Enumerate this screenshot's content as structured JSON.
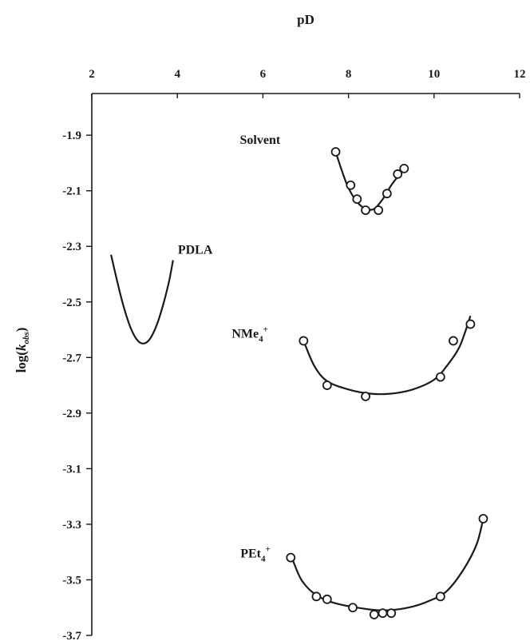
{
  "chart_data": {
    "type": "scatter",
    "title": "",
    "xlabel": "pD",
    "ylabel_main": "log(",
    "ylabel_k": "k",
    "ylabel_sub": "obs",
    "ylabel_close": ")",
    "x_axis_position": "top",
    "xlim": [
      2,
      12
    ],
    "ylim": [
      -3.7,
      -1.75
    ],
    "x_ticks": [
      "2",
      "4",
      "6",
      "8",
      "10",
      "12"
    ],
    "y_ticks": [
      "-1.9",
      "-2.1",
      "-2.3",
      "-2.5",
      "-2.7",
      "-2.9",
      "-3.1",
      "-3.3",
      "-3.5",
      "-3.7"
    ],
    "grid": false,
    "series": [
      {
        "name": "Solvent",
        "label_parts": {
          "base": "Solvent",
          "sub": "",
          "sup": ""
        },
        "points": [
          [
            7.7,
            -1.96
          ],
          [
            8.05,
            -2.08
          ],
          [
            8.2,
            -2.13
          ],
          [
            8.4,
            -2.17
          ],
          [
            8.7,
            -2.17
          ],
          [
            8.9,
            -2.11
          ],
          [
            9.15,
            -2.04
          ],
          [
            9.3,
            -2.02
          ]
        ],
        "fit": [
          [
            7.7,
            -1.96
          ],
          [
            7.85,
            -2.03
          ],
          [
            8.0,
            -2.09
          ],
          [
            8.2,
            -2.14
          ],
          [
            8.4,
            -2.165
          ],
          [
            8.6,
            -2.165
          ],
          [
            8.8,
            -2.13
          ],
          [
            9.0,
            -2.08
          ],
          [
            9.2,
            -2.04
          ],
          [
            9.35,
            -2.01
          ]
        ]
      },
      {
        "name": "PDLA",
        "label_parts": {
          "base": "PDLA",
          "sub": "",
          "sup": ""
        },
        "points": [],
        "fit": [
          [
            2.45,
            -2.33
          ],
          [
            2.6,
            -2.43
          ],
          [
            2.75,
            -2.52
          ],
          [
            2.9,
            -2.59
          ],
          [
            3.05,
            -2.635
          ],
          [
            3.2,
            -2.65
          ],
          [
            3.35,
            -2.635
          ],
          [
            3.5,
            -2.59
          ],
          [
            3.65,
            -2.52
          ],
          [
            3.8,
            -2.43
          ],
          [
            3.9,
            -2.35
          ]
        ]
      },
      {
        "name": "NMe4+",
        "label_parts": {
          "base": "NMe",
          "sub": "4",
          "sup": "+"
        },
        "points": [
          [
            6.95,
            -2.64
          ],
          [
            7.5,
            -2.8
          ],
          [
            8.4,
            -2.84
          ],
          [
            10.15,
            -2.77
          ],
          [
            10.45,
            -2.64
          ],
          [
            10.85,
            -2.58
          ]
        ],
        "fit": [
          [
            6.95,
            -2.64
          ],
          [
            7.2,
            -2.73
          ],
          [
            7.5,
            -2.785
          ],
          [
            8.0,
            -2.815
          ],
          [
            8.5,
            -2.83
          ],
          [
            9.0,
            -2.83
          ],
          [
            9.5,
            -2.815
          ],
          [
            10.0,
            -2.78
          ],
          [
            10.3,
            -2.73
          ],
          [
            10.6,
            -2.66
          ],
          [
            10.85,
            -2.55
          ]
        ]
      },
      {
        "name": "PEt4+",
        "label_parts": {
          "base": "PEt",
          "sub": "4",
          "sup": "+"
        },
        "points": [
          [
            6.65,
            -3.42
          ],
          [
            7.25,
            -3.56
          ],
          [
            7.5,
            -3.57
          ],
          [
            8.1,
            -3.6
          ],
          [
            8.6,
            -3.625
          ],
          [
            8.8,
            -3.62
          ],
          [
            9.0,
            -3.62
          ],
          [
            10.15,
            -3.56
          ],
          [
            11.15,
            -3.28
          ]
        ],
        "fit": [
          [
            6.7,
            -3.43
          ],
          [
            6.9,
            -3.5
          ],
          [
            7.2,
            -3.55
          ],
          [
            7.6,
            -3.58
          ],
          [
            8.2,
            -3.6
          ],
          [
            8.8,
            -3.61
          ],
          [
            9.4,
            -3.6
          ],
          [
            9.9,
            -3.575
          ],
          [
            10.3,
            -3.54
          ],
          [
            10.7,
            -3.46
          ],
          [
            11.0,
            -3.37
          ],
          [
            11.15,
            -3.28
          ]
        ]
      }
    ]
  }
}
